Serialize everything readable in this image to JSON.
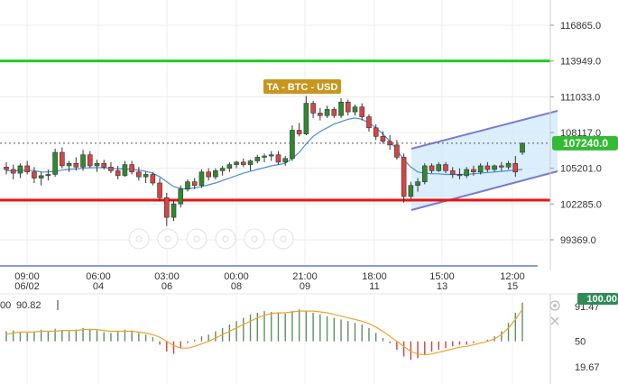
{
  "chart_data": [
    {
      "type": "candlestick",
      "title": "TA - BTC - USD",
      "colors": {
        "up": "#2f8a2f",
        "down": "#d64545",
        "ema": "#4a90d9",
        "resistance": "#22cc22",
        "support": "#ee1111",
        "channel": "#7a7ad0",
        "channel_fill": "#cfe8fb",
        "title_bg": "#c8961e",
        "price_tag": "#33bb33"
      },
      "y_ticks": [
        "116865.0",
        "113949.0",
        "111033.0",
        "108117.0",
        "105201.0",
        "102285.0",
        "99369.0"
      ],
      "ylim": [
        97500,
        119000
      ],
      "x_ticks": [
        {
          "time": "09:00",
          "date": "06/02"
        },
        {
          "time": "06:00",
          "date": "04"
        },
        {
          "time": "03:00",
          "date": "06"
        },
        {
          "time": "00:00",
          "date": "08"
        },
        {
          "time": "21:00",
          "date": "09"
        },
        {
          "time": "18:00",
          "date": "11"
        },
        {
          "time": "15:00",
          "date": "13"
        },
        {
          "time": "12:00",
          "date": "15"
        }
      ],
      "current_price": "107240.0",
      "resistance_level": 113949,
      "support_level": 102600,
      "candles": [
        [
          105300,
          105700,
          104700,
          105100
        ],
        [
          105100,
          105500,
          104300,
          104800
        ],
        [
          104800,
          105600,
          104400,
          105400
        ],
        [
          105400,
          105800,
          104700,
          104900
        ],
        [
          104900,
          105300,
          104000,
          104400
        ],
        [
          104400,
          104900,
          103800,
          104600
        ],
        [
          104600,
          105100,
          104200,
          104700
        ],
        [
          104700,
          106800,
          104500,
          106500
        ],
        [
          106500,
          106900,
          105200,
          105400
        ],
        [
          105400,
          105800,
          104900,
          105600
        ],
        [
          105600,
          106100,
          105000,
          105300
        ],
        [
          105300,
          106700,
          105000,
          106300
        ],
        [
          106300,
          106600,
          105200,
          105400
        ],
        [
          105400,
          105900,
          104900,
          105600
        ],
        [
          105600,
          105900,
          105100,
          105300
        ],
        [
          105300,
          105700,
          104800,
          105000
        ],
        [
          105000,
          105400,
          104300,
          104600
        ],
        [
          104600,
          105800,
          104500,
          105500
        ],
        [
          105500,
          105800,
          104700,
          104900
        ],
        [
          104900,
          105300,
          104200,
          104500
        ],
        [
          104500,
          104900,
          104000,
          104700
        ],
        [
          104700,
          104900,
          103800,
          104000
        ],
        [
          104000,
          104400,
          102500,
          102800
        ],
        [
          102800,
          103200,
          100500,
          101200
        ],
        [
          101200,
          102600,
          100900,
          102300
        ],
        [
          102300,
          103800,
          102000,
          103500
        ],
        [
          103500,
          104300,
          103300,
          104100
        ],
        [
          104100,
          104400,
          103500,
          103800
        ],
        [
          103800,
          105100,
          103600,
          104900
        ],
        [
          104900,
          105200,
          104200,
          104500
        ],
        [
          104500,
          105200,
          104300,
          105000
        ],
        [
          105000,
          105400,
          104600,
          105200
        ],
        [
          105200,
          105700,
          104900,
          105500
        ],
        [
          105500,
          105800,
          105200,
          105700
        ],
        [
          105700,
          106000,
          105300,
          105500
        ],
        [
          105500,
          105900,
          105000,
          105800
        ],
        [
          105800,
          106300,
          105600,
          106100
        ],
        [
          106100,
          106400,
          105700,
          106200
        ],
        [
          106200,
          106600,
          105800,
          106300
        ],
        [
          106300,
          106600,
          105500,
          105700
        ],
        [
          105700,
          106200,
          105400,
          106000
        ],
        [
          106000,
          108700,
          105800,
          108300
        ],
        [
          108300,
          108900,
          107800,
          108000
        ],
        [
          108000,
          111100,
          107900,
          110500
        ],
        [
          110500,
          110700,
          109300,
          109700
        ],
        [
          109700,
          110100,
          109100,
          109500
        ],
        [
          109500,
          110300,
          109300,
          110000
        ],
        [
          110000,
          110200,
          109300,
          109500
        ],
        [
          109500,
          110900,
          109300,
          110600
        ],
        [
          110600,
          110800,
          109500,
          109800
        ],
        [
          109800,
          110400,
          109500,
          110200
        ],
        [
          110200,
          110500,
          109100,
          109400
        ],
        [
          109400,
          109600,
          108200,
          108500
        ],
        [
          108500,
          108800,
          107500,
          107800
        ],
        [
          107800,
          108200,
          107200,
          107400
        ],
        [
          107400,
          107900,
          106700,
          107100
        ],
        [
          107100,
          107500,
          105900,
          106100
        ],
        [
          106100,
          106400,
          102400,
          102900
        ],
        [
          102900,
          104100,
          102700,
          103800
        ],
        [
          103800,
          104400,
          103300,
          104100
        ],
        [
          104100,
          105600,
          103900,
          105400
        ],
        [
          105400,
          105600,
          104800,
          105000
        ],
        [
          105000,
          105700,
          104900,
          105500
        ],
        [
          105500,
          105700,
          104800,
          105000
        ],
        [
          105000,
          105300,
          104400,
          104700
        ],
        [
          104700,
          105200,
          104300,
          104600
        ],
        [
          104600,
          105300,
          104400,
          105100
        ],
        [
          105100,
          105400,
          104600,
          104900
        ],
        [
          104900,
          105600,
          104700,
          105400
        ],
        [
          105400,
          105700,
          104900,
          105100
        ],
        [
          105100,
          105500,
          104900,
          105400
        ],
        [
          105400,
          105700,
          105000,
          105300
        ],
        [
          105300,
          105800,
          105100,
          105600
        ],
        [
          105600,
          106200,
          104500,
          104900
        ],
        [
          106500,
          107300,
          106300,
          107240
        ]
      ],
      "ema": [
        105000,
        105000,
        105000,
        105050,
        105000,
        104900,
        104900,
        104950,
        105050,
        105100,
        105150,
        105200,
        105250,
        105250,
        105250,
        105200,
        105150,
        105150,
        105100,
        105050,
        104950,
        104800,
        104500,
        104100,
        103700,
        103550,
        103500,
        103600,
        103700,
        103850,
        104000,
        104200,
        104400,
        104600,
        104800,
        104950,
        105100,
        105250,
        105400,
        105500,
        105600,
        106000,
        106500,
        107200,
        107800,
        108200,
        108500,
        108800,
        109000,
        109200,
        109300,
        109200,
        108900,
        108500,
        108000,
        107400,
        106700,
        105900,
        105300,
        104900,
        104800,
        104750,
        104750,
        104700,
        104700,
        104700,
        104700,
        104750,
        104800,
        104850,
        104900,
        104950,
        105000,
        105050,
        105100
      ]
    },
    {
      "type": "bar",
      "y_ticks": [
        "91.47",
        "50",
        "19.67"
      ],
      "ylim": [
        12,
        98
      ],
      "value_labels": [
        "00",
        "90.82",
        "100.00"
      ],
      "baseline": 50,
      "colors": {
        "pos": "#5e8f5e",
        "neg": "#d04040",
        "line": "#f0a030",
        "badge": "#2e8b57"
      },
      "hist": [
        62,
        63,
        61,
        60,
        62,
        64,
        62,
        65,
        63,
        62,
        64,
        66,
        65,
        63,
        61,
        60,
        62,
        64,
        63,
        60,
        58,
        55,
        46,
        38,
        35,
        42,
        48,
        52,
        56,
        58,
        62,
        66,
        70,
        74,
        78,
        82,
        84,
        86,
        85,
        84,
        83,
        86,
        88,
        86,
        84,
        82,
        80,
        78,
        76,
        74,
        72,
        70,
        66,
        60,
        54,
        48,
        40,
        32,
        28,
        30,
        34,
        38,
        40,
        42,
        44,
        46,
        46,
        48,
        50,
        52,
        56,
        62,
        72,
        84,
        96
      ],
      "line": [
        58,
        60,
        61,
        61,
        61,
        62,
        62,
        62,
        63,
        63,
        63,
        64,
        64,
        64,
        63,
        62,
        62,
        62,
        62,
        61,
        60,
        58,
        55,
        50,
        45,
        42,
        42,
        44,
        47,
        50,
        54,
        58,
        62,
        66,
        70,
        74,
        78,
        81,
        83,
        84,
        84,
        85,
        86,
        86,
        86,
        85,
        84,
        82,
        80,
        78,
        76,
        74,
        71,
        67,
        62,
        56,
        50,
        44,
        38,
        35,
        34,
        35,
        37,
        39,
        41,
        43,
        44,
        46,
        48,
        50,
        53,
        58,
        66,
        76,
        88
      ]
    }
  ]
}
